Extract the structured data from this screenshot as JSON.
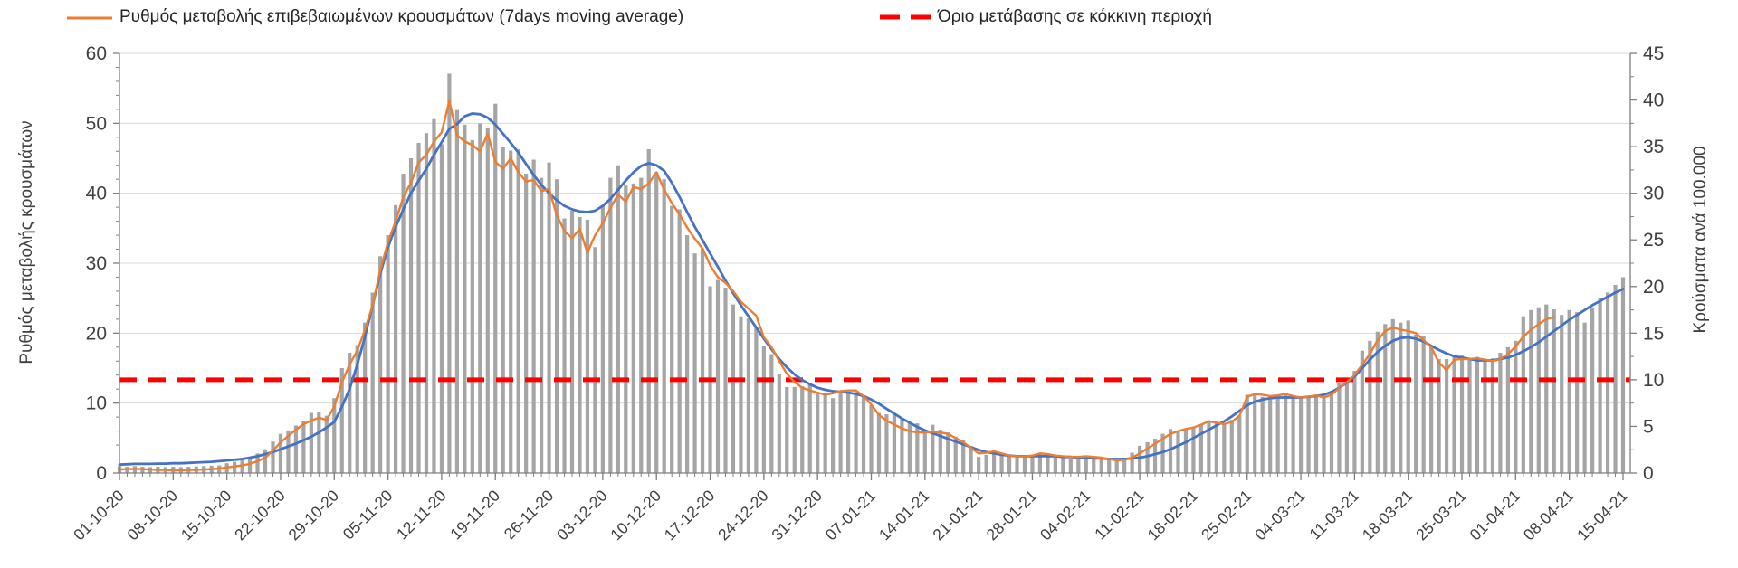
{
  "legend": {
    "items": [
      {
        "id": "ma",
        "label": "Ρυθμός μεταβολής επιβεβαιωμένων κρουσμάτων (7days moving average)",
        "marker": "solid-line",
        "color": "#ED7D31"
      },
      {
        "id": "threshold",
        "label": "Όριο μετάβασης σε κόκκινη περιοχή",
        "marker": "dashed-line",
        "color": "#FF0000"
      }
    ]
  },
  "y_left": {
    "title": "Ρυθμός μεταβολής κρουσμάτων",
    "range": [
      0,
      60
    ],
    "ticks": [
      0,
      10,
      20,
      30,
      40,
      50,
      60
    ]
  },
  "y_right": {
    "title": "Κρούσματα ανά 100.000",
    "range": [
      0,
      45
    ],
    "ticks": [
      0,
      5,
      10,
      15,
      20,
      25,
      30,
      35,
      40,
      45
    ]
  },
  "colors": {
    "bars": "#A5A5A5",
    "ma_line": "#ED7D31",
    "trend_line": "#4472C4",
    "threshold": "#FF0000",
    "grid": "#D9D9D9",
    "axis": "#7F7F7F",
    "tick_text": "#404040"
  },
  "chart_data": {
    "type": "bar",
    "grid": true,
    "legend_position": "top",
    "x_is_daily": true,
    "n_days": 197,
    "x_tick_labels": [
      "01-10-20",
      "08-10-20",
      "15-10-20",
      "22-10-20",
      "29-10-20",
      "05-11-20",
      "12-11-20",
      "19-11-20",
      "26-11-20",
      "03-12-20",
      "10-12-20",
      "17-12-20",
      "24-12-20",
      "31-12-20",
      "07-01-21",
      "14-01-21",
      "21-01-21",
      "28-01-21",
      "04-02-21",
      "11-02-21",
      "18-02-21",
      "25-02-21",
      "04-03-21",
      "11-03-21",
      "18-03-21",
      "25-03-21",
      "01-04-21",
      "08-04-21",
      "15-04-21"
    ],
    "x_tick_every_days": 7,
    "threshold": {
      "axis": "right",
      "value": 10,
      "value_left_axis": 13.33
    },
    "series": [
      {
        "name": "daily-cases-bars",
        "type": "bar",
        "axis": "left",
        "values": [
          1.0,
          0.9,
          1.0,
          0.9,
          0.85,
          0.9,
          0.85,
          0.9,
          0.85,
          0.9,
          0.95,
          1.0,
          1.05,
          1.1,
          1.4,
          1.6,
          1.9,
          2.2,
          2.8,
          3.4,
          4.5,
          5.6,
          6.1,
          6.8,
          7.5,
          8.6,
          8.7,
          8.2,
          10.7,
          15.0,
          17.2,
          18.3,
          21.5,
          25.8,
          31.0,
          34.0,
          38.3,
          42.8,
          45.0,
          47.2,
          48.6,
          50.6,
          47.0,
          57.1,
          51.9,
          49.8,
          47.6,
          50.0,
          49.3,
          52.8,
          46.6,
          46.1,
          46.3,
          42.8,
          44.8,
          42.2,
          44.4,
          42.0,
          36.4,
          37.5,
          36.6,
          36.2,
          32.3,
          38.2,
          42.2,
          44.0,
          41.1,
          41.4,
          42.2,
          46.3,
          43.0,
          42.0,
          38.2,
          37.7,
          34.0,
          31.4,
          32.1,
          26.7,
          27.6,
          26.5,
          24.1,
          22.4,
          22.1,
          20.9,
          18.1,
          17.0,
          14.2,
          12.3,
          12.3,
          12.4,
          12.7,
          11.4,
          11.4,
          10.7,
          11.4,
          11.4,
          11.6,
          11.0,
          9.7,
          8.6,
          8.4,
          8.4,
          7.7,
          7.3,
          7.1,
          6.2,
          6.9,
          6.2,
          5.8,
          5.2,
          4.7,
          3.8,
          2.3,
          2.6,
          2.8,
          2.5,
          2.4,
          2.3,
          2.3,
          2.5,
          2.7,
          2.5,
          2.3,
          2.2,
          2.1,
          2.1,
          2.2,
          2.1,
          2.0,
          1.9,
          1.8,
          2.2,
          2.9,
          3.9,
          4.4,
          4.9,
          5.6,
          6.3,
          5.9,
          6.4,
          6.6,
          7.0,
          7.5,
          7.3,
          7.0,
          7.6,
          8.2,
          11.2,
          11.4,
          10.9,
          10.6,
          10.8,
          11.2,
          10.7,
          10.7,
          10.9,
          11.0,
          10.8,
          11.6,
          12.9,
          13.3,
          14.6,
          17.5,
          18.9,
          20.2,
          21.3,
          22.0,
          21.5,
          21.8,
          19.8,
          19.6,
          18.2,
          16.3,
          16.3,
          16.8,
          16.8,
          16.3,
          16.6,
          16.2,
          16.4,
          17.2,
          18.0,
          18.9,
          22.4,
          23.3,
          23.7,
          24.1,
          23.4,
          22.6,
          23.3,
          23.0,
          21.5,
          23.7,
          25.0,
          25.8,
          26.9,
          28.0
        ]
      },
      {
        "name": "7day-moving-average",
        "type": "line",
        "axis": "left",
        "values": [
          0.5,
          0.55,
          0.6,
          0.55,
          0.5,
          0.45,
          0.45,
          0.4,
          0.4,
          0.45,
          0.45,
          0.5,
          0.55,
          0.65,
          0.8,
          0.95,
          1.1,
          1.3,
          1.7,
          2.2,
          3.2,
          4.4,
          5.3,
          6.2,
          7.0,
          7.5,
          7.9,
          7.6,
          9.5,
          13.0,
          15.5,
          17.5,
          20.5,
          24.0,
          29.0,
          33.0,
          36.0,
          39.5,
          41.5,
          44.4,
          45.5,
          47.4,
          48.7,
          53.2,
          48.3,
          47.4,
          46.9,
          46.0,
          48.5,
          44.5,
          43.5,
          45.0,
          43.0,
          41.7,
          41.9,
          40.3,
          40.6,
          36.9,
          34.6,
          33.6,
          34.9,
          31.5,
          34.0,
          35.7,
          37.9,
          39.8,
          38.8,
          40.9,
          40.6,
          41.4,
          43.0,
          40.5,
          38.6,
          37.0,
          35.1,
          33.5,
          32.1,
          29.7,
          28.0,
          27.2,
          26.0,
          24.5,
          23.5,
          22.5,
          19.4,
          18.0,
          16.0,
          14.2,
          13.0,
          12.2,
          11.8,
          11.5,
          11.2,
          11.4,
          11.7,
          11.8,
          11.8,
          11.0,
          9.8,
          8.3,
          7.5,
          6.9,
          6.4,
          6.0,
          5.8,
          5.8,
          5.9,
          5.8,
          5.6,
          5.0,
          4.4,
          3.6,
          2.8,
          2.9,
          3.1,
          2.8,
          2.5,
          2.4,
          2.4,
          2.5,
          2.8,
          2.7,
          2.5,
          2.4,
          2.3,
          2.3,
          2.4,
          2.3,
          2.2,
          2.0,
          1.8,
          1.9,
          2.2,
          2.8,
          3.5,
          4.2,
          4.9,
          5.6,
          6.0,
          6.3,
          6.5,
          6.9,
          7.4,
          7.2,
          7.0,
          7.3,
          8.2,
          10.9,
          11.3,
          11.2,
          11.0,
          11.1,
          11.3,
          11.0,
          10.8,
          10.9,
          11.1,
          10.8,
          11.2,
          12.2,
          13.0,
          14.0,
          15.5,
          17.0,
          19.0,
          20.3,
          20.8,
          20.5,
          20.3,
          20.0,
          19.0,
          18.0,
          15.8,
          14.7,
          16.2,
          16.3,
          16.3,
          16.4,
          16.2,
          16.0,
          16.3,
          17.0,
          18.1,
          19.5,
          20.5,
          21.3,
          22.0,
          22.3,
          null,
          null,
          null,
          null,
          null,
          null,
          null,
          null,
          null
        ]
      },
      {
        "name": "smoothed-trend",
        "type": "line",
        "axis": "left",
        "values": [
          1.2,
          1.25,
          1.3,
          1.3,
          1.3,
          1.35,
          1.35,
          1.4,
          1.4,
          1.45,
          1.5,
          1.55,
          1.6,
          1.7,
          1.8,
          1.9,
          2.0,
          2.2,
          2.4,
          2.7,
          3.0,
          3.4,
          3.8,
          4.2,
          4.7,
          5.2,
          5.8,
          6.5,
          7.3,
          9.5,
          12.0,
          15.5,
          19.5,
          24.0,
          28.5,
          32.3,
          35.2,
          37.7,
          40.0,
          41.8,
          43.5,
          45.5,
          47.3,
          49.2,
          49.9,
          51.0,
          51.4,
          51.3,
          50.8,
          49.8,
          48.5,
          47.2,
          45.8,
          44.2,
          42.6,
          41.2,
          40.0,
          39.0,
          38.2,
          37.7,
          37.4,
          37.3,
          37.5,
          38.2,
          39.2,
          40.5,
          41.8,
          43.0,
          43.9,
          44.3,
          44.0,
          43.2,
          41.5,
          39.5,
          37.3,
          35.2,
          33.3,
          31.4,
          29.5,
          27.5,
          25.7,
          24.0,
          22.4,
          20.8,
          19.2,
          17.7,
          16.3,
          15.1,
          14.1,
          13.3,
          12.7,
          12.2,
          11.9,
          11.7,
          11.6,
          11.5,
          11.3,
          11.0,
          10.5,
          9.9,
          9.2,
          8.5,
          7.8,
          7.2,
          6.6,
          6.1,
          5.7,
          5.3,
          4.9,
          4.5,
          4.1,
          3.7,
          3.3,
          3.0,
          2.8,
          2.6,
          2.5,
          2.4,
          2.4,
          2.4,
          2.4,
          2.4,
          2.4,
          2.3,
          2.3,
          2.2,
          2.2,
          2.1,
          2.1,
          2.0,
          2.0,
          2.0,
          2.1,
          2.2,
          2.4,
          2.7,
          3.0,
          3.4,
          3.9,
          4.4,
          5.0,
          5.6,
          6.2,
          6.8,
          7.4,
          8.1,
          8.9,
          9.7,
          10.2,
          10.5,
          10.7,
          10.8,
          10.8,
          10.8,
          10.8,
          10.9,
          11.0,
          11.2,
          11.6,
          12.2,
          12.9,
          13.8,
          15.0,
          16.2,
          17.3,
          18.2,
          18.9,
          19.3,
          19.4,
          19.2,
          18.8,
          18.2,
          17.6,
          17.1,
          16.7,
          16.5,
          16.3,
          16.1,
          16.1,
          16.1,
          16.3,
          16.5,
          16.9,
          17.4,
          18.0,
          18.7,
          19.5,
          20.3,
          21.1,
          21.9,
          22.6,
          23.3,
          24.0,
          24.6,
          25.2,
          25.8,
          26.3
        ]
      }
    ]
  }
}
